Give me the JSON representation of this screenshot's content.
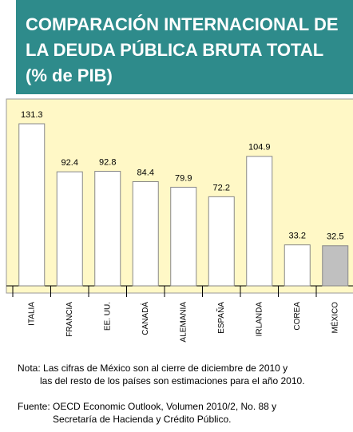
{
  "chart_data": {
    "type": "bar",
    "title": [
      "COMPARACIÓN INTERNACIONAL DE",
      "LA DEUDA PÚBLICA BRUTA TOTAL",
      "(% de PIB)"
    ],
    "categories": [
      "ITALIA",
      "FRANCIA",
      "EE. UU.",
      "CANADÁ",
      "ALEMANIA",
      "ESPAÑA",
      "IRLANDA",
      "COREA",
      "MÉXICO"
    ],
    "values": [
      131.3,
      92.4,
      92.8,
      84.4,
      79.9,
      72.2,
      104.9,
      33.2,
      32.5
    ],
    "colors": [
      "#ffffff",
      "#ffffff",
      "#ffffff",
      "#ffffff",
      "#ffffff",
      "#ffffff",
      "#ffffff",
      "#ffffff",
      "#c0c0c0"
    ],
    "notes": [
      [
        "Nota: Las cifras de México son al cierre de diciembre de 2010 y",
        "las del resto de los países son estimaciones para el año 2010."
      ],
      [
        "Fuente: OECD Economic Outlook, Volumen 2010/2, No. 88 y",
        "Secretaría de Hacienda y Crédito Público."
      ]
    ]
  }
}
